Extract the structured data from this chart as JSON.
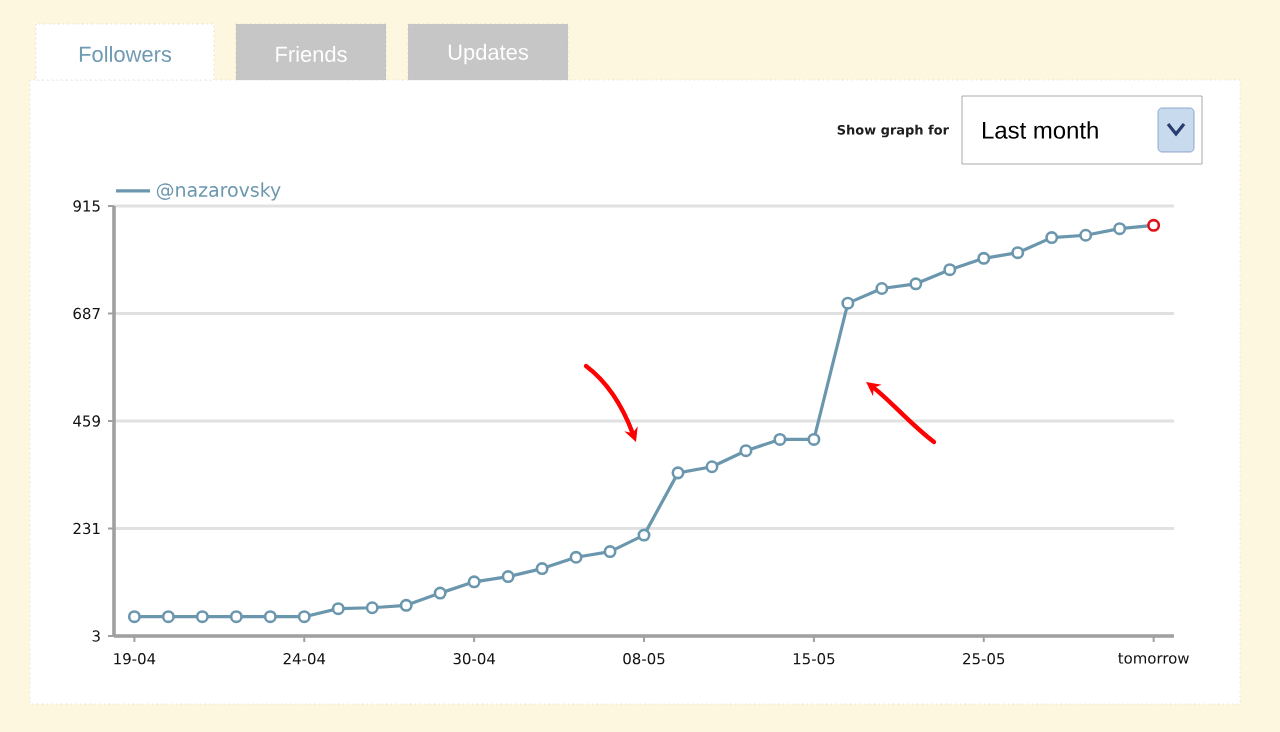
{
  "chart_data": {
    "type": "line",
    "categories": [
      "19-04",
      null,
      null,
      null,
      null,
      "24-04",
      null,
      null,
      null,
      null,
      "30-04",
      null,
      null,
      null,
      null,
      "08-05",
      null,
      null,
      null,
      null,
      "15-05",
      null,
      null,
      null,
      null,
      "25-05",
      null,
      null,
      null,
      null,
      "tomorrow"
    ],
    "series": [
      {
        "name": "@nazarovsky",
        "color": "#6b97ae",
        "values": [
          44,
          44,
          44,
          44,
          44,
          44,
          61,
          63,
          68,
          94,
          118,
          129,
          146,
          170,
          182,
          217,
          349,
          362,
          396,
          420,
          420,
          709,
          740,
          750,
          780,
          804,
          816,
          848,
          853,
          867,
          874
        ],
        "colors": [
          "#6b97ae",
          "#6b97ae",
          "#6b97ae",
          "#6b97ae",
          "#6b97ae",
          "#6b97ae",
          "#6b97ae",
          "#6b97ae",
          "#6b97ae",
          "#6b97ae",
          "#6b97ae",
          "#6b97ae",
          "#6b97ae",
          "#6b97ae",
          "#6b97ae",
          "#6b97ae",
          "#6b97ae",
          "#6b97ae",
          "#6b97ae",
          "#6b97ae",
          "#6b97ae",
          "#6b97ae",
          "#6b97ae",
          "#6b97ae",
          "#6b97ae",
          "#6b97ae",
          "#6b97ae",
          "#6b97ae",
          "#6b97ae",
          "#6b97ae",
          "#e0101a"
        ]
      }
    ],
    "ylim": [
      3,
      915
    ],
    "yticks": [
      3,
      231,
      459,
      687,
      915
    ],
    "grid": "y",
    "legend": "top left",
    "marker": "circle",
    "line_style": "solid",
    "annotations": [
      "Followers",
      "Friends",
      "Updates",
      "Show graph for",
      "Last month"
    ]
  }
}
